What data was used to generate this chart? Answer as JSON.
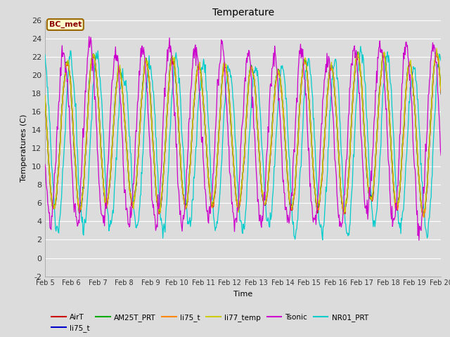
{
  "title": "Temperature",
  "xlabel": "Time",
  "ylabel": "Temperatures (C)",
  "ylim": [
    -2,
    26
  ],
  "xlim_days": [
    5,
    20
  ],
  "plot_bg_color": "#dcdcdc",
  "annotation_text": "BC_met",
  "annotation_color": "#8B0000",
  "annotation_bg": "#ffffcc",
  "annotation_border": "#996600",
  "series_colors": {
    "AirT": "#cc0000",
    "li75_t_blue": "#0000cc",
    "AM25T_PRT": "#00aa00",
    "li75_t_orange": "#ff8800",
    "li77_temp": "#cccc00",
    "Tsonic": "#cc00cc",
    "NR01_PRT": "#00cccc"
  },
  "n_points": 720
}
